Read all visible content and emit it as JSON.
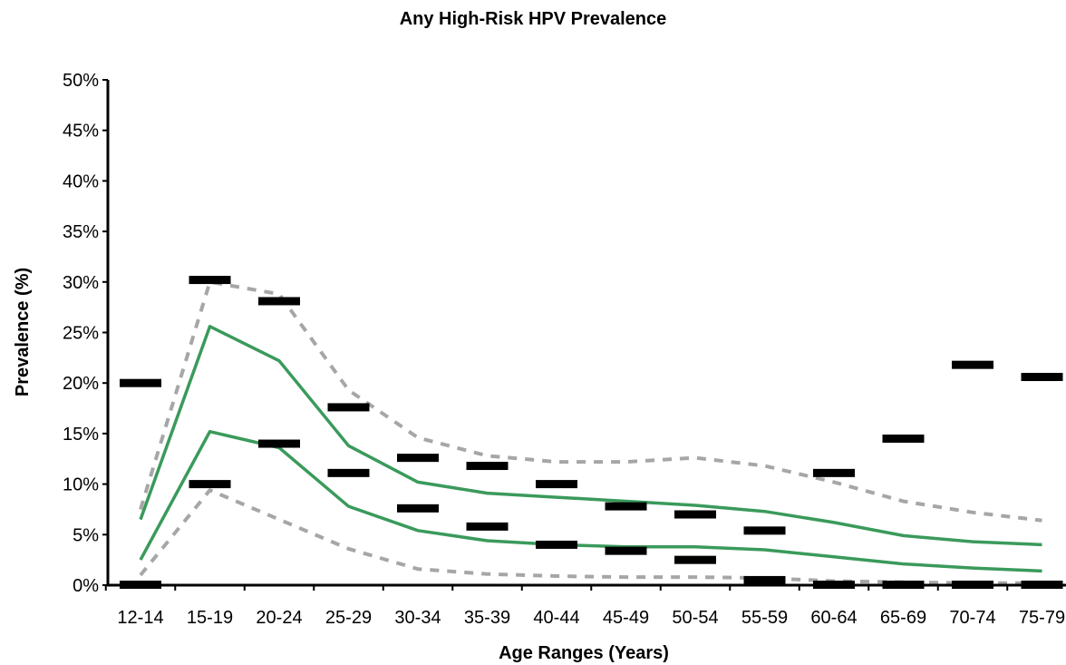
{
  "chart_data": {
    "type": "line",
    "title": "Any High-Risk HPV Prevalence",
    "xlabel": "Age Ranges (Years)",
    "ylabel": "Prevalence (%)",
    "categories": [
      "12-14",
      "15-19",
      "20-24",
      "25-29",
      "30-34",
      "35-39",
      "40-44",
      "45-49",
      "50-54",
      "55-59",
      "60-64",
      "65-69",
      "70-74",
      "75-79"
    ],
    "ylim": [
      0,
      50
    ],
    "yticks": [
      0,
      5,
      10,
      15,
      20,
      25,
      30,
      35,
      40,
      45,
      50
    ],
    "ytick_labels": [
      "0%",
      "5%",
      "10%",
      "15%",
      "20%",
      "25%",
      "30%",
      "35%",
      "40%",
      "45%",
      "50%"
    ],
    "grid": false,
    "colors": {
      "interval_line": "#3a9a5b",
      "outer_interval_line": "#a6a6a6",
      "observed_bar": "#000000",
      "axis": "#000000"
    },
    "series": [
      {
        "style": "solid-green",
        "values": [
          6.5,
          25.6,
          22.2,
          13.8,
          10.2,
          9.1,
          8.7,
          8.3,
          7.9,
          7.3,
          6.2,
          4.9,
          4.3,
          4.0
        ]
      },
      {
        "style": "solid-green",
        "values": [
          2.5,
          15.2,
          13.6,
          7.8,
          5.4,
          4.4,
          4.0,
          3.8,
          3.8,
          3.5,
          2.8,
          2.1,
          1.7,
          1.4
        ]
      },
      {
        "style": "dashed-gray",
        "values": [
          7.5,
          30.0,
          28.8,
          19.3,
          14.6,
          12.8,
          12.2,
          12.2,
          12.6,
          11.8,
          10.2,
          8.3,
          7.2,
          6.4
        ]
      },
      {
        "style": "dashed-gray",
        "values": [
          1.0,
          9.4,
          6.5,
          3.6,
          1.6,
          1.1,
          0.9,
          0.8,
          0.8,
          0.7,
          0.4,
          0.3,
          0.2,
          0.2
        ]
      }
    ],
    "observed_bars": [
      {
        "category": "12-14",
        "upper": 20.0,
        "lower": 0.0
      },
      {
        "category": "15-19",
        "upper": 30.2,
        "lower": 10.0
      },
      {
        "category": "20-24",
        "upper": 28.1,
        "lower": 14.0
      },
      {
        "category": "25-29",
        "upper": 17.6,
        "lower": 11.1
      },
      {
        "category": "30-34",
        "upper": 12.6,
        "lower": 7.6
      },
      {
        "category": "35-39",
        "upper": 11.8,
        "lower": 5.8
      },
      {
        "category": "40-44",
        "upper": 10.0,
        "lower": 4.0
      },
      {
        "category": "45-49",
        "upper": 7.8,
        "lower": 3.4
      },
      {
        "category": "50-54",
        "upper": 7.0,
        "lower": 2.5
      },
      {
        "category": "55-59",
        "upper": 5.4,
        "lower": 0.5
      },
      {
        "category": "60-64",
        "upper": 11.1,
        "lower": 0.0
      },
      {
        "category": "65-69",
        "upper": 14.5,
        "lower": 0.0
      },
      {
        "category": "70-74",
        "upper": 21.8,
        "lower": 0.0
      },
      {
        "category": "75-79",
        "upper": 20.6,
        "lower": 0.0
      }
    ]
  }
}
